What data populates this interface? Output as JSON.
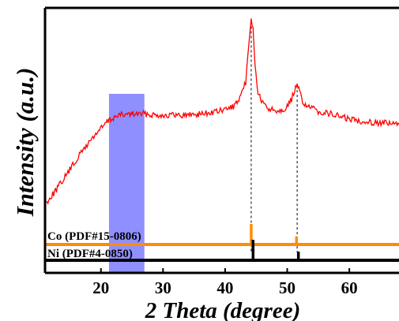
{
  "chart_data": {
    "type": "line",
    "title": "",
    "xlabel": "2 Theta (degree)",
    "ylabel": "Intensity (a.u.)",
    "xlim": [
      11,
      68
    ],
    "x_ticks": [
      20,
      30,
      40,
      50,
      60
    ],
    "y_ticks": [],
    "grid": false,
    "colors": {
      "pattern": "#ff0000",
      "highlight": "#7b7bff",
      "co_reference": "#ff8c00",
      "ni_reference": "#000000",
      "guide": "#000000"
    },
    "highlight_region": [
      21.3,
      27.0
    ],
    "series": [
      {
        "points": [
          [
            11,
            0.26
          ],
          [
            13,
            0.32
          ],
          [
            15,
            0.39
          ],
          [
            17,
            0.46
          ],
          [
            19,
            0.52
          ],
          [
            21,
            0.57
          ],
          [
            22,
            0.585
          ],
          [
            23,
            0.595
          ],
          [
            25,
            0.6
          ],
          [
            27,
            0.6
          ],
          [
            30,
            0.595
          ],
          [
            33,
            0.595
          ],
          [
            36,
            0.6
          ],
          [
            38,
            0.605
          ],
          [
            40,
            0.615
          ],
          [
            41.5,
            0.63
          ],
          [
            42.5,
            0.66
          ],
          [
            43.3,
            0.72
          ],
          [
            43.8,
            0.85
          ],
          [
            44.2,
            0.96
          ],
          [
            44.5,
            0.93
          ],
          [
            44.8,
            0.78
          ],
          [
            45.3,
            0.68
          ],
          [
            46,
            0.64
          ],
          [
            47,
            0.62
          ],
          [
            48,
            0.615
          ],
          [
            49,
            0.615
          ],
          [
            50,
            0.625
          ],
          [
            50.7,
            0.655
          ],
          [
            51.2,
            0.69
          ],
          [
            51.6,
            0.705
          ],
          [
            52.0,
            0.685
          ],
          [
            52.5,
            0.645
          ],
          [
            53.5,
            0.625
          ],
          [
            55,
            0.61
          ],
          [
            57,
            0.6
          ],
          [
            60,
            0.58
          ],
          [
            63,
            0.57
          ],
          [
            66,
            0.565
          ],
          [
            68,
            0.56
          ]
        ]
      }
    ],
    "reference_patterns": [
      {
        "label": "Co (PDF#15-0806)",
        "color": "#ff8c00",
        "peaks": [
          {
            "x": 44.2,
            "intensity": 100
          },
          {
            "x": 51.5,
            "intensity": 40
          }
        ]
      },
      {
        "label": "Ni (PDF#4-0850)",
        "color": "#000000",
        "peaks": [
          {
            "x": 44.5,
            "intensity": 100
          },
          {
            "x": 51.8,
            "intensity": 42
          }
        ]
      }
    ]
  }
}
